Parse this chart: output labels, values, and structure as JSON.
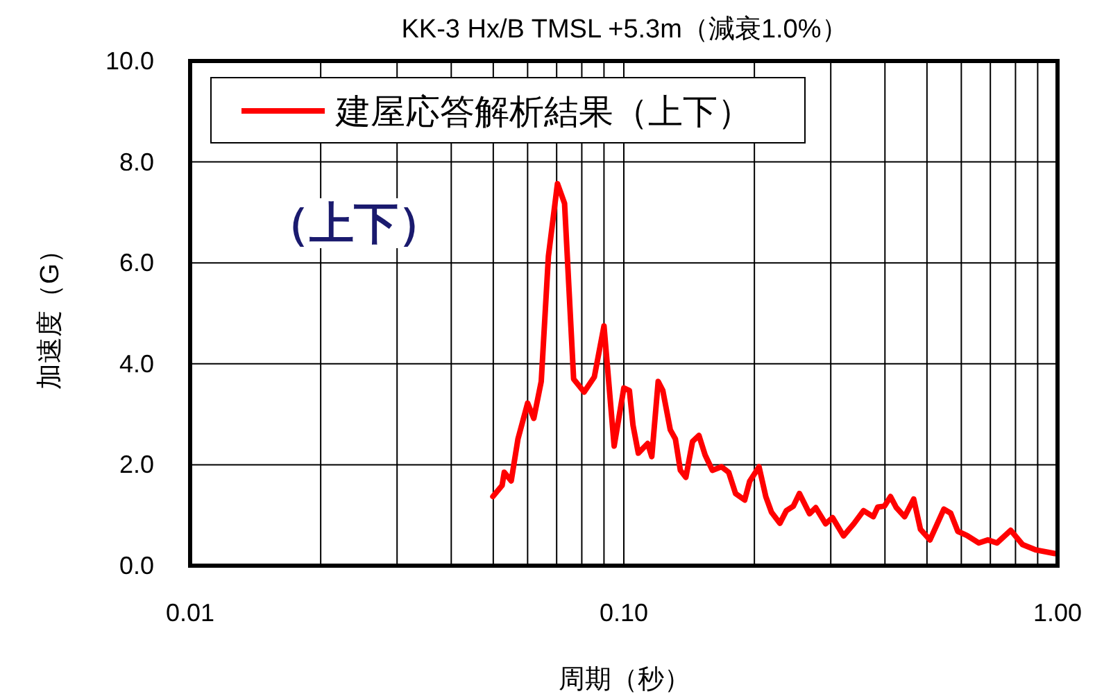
{
  "chart_data": {
    "type": "line",
    "title": "KK-3 Hx/B TMSL +5.3m（減衰1.0%）",
    "xlabel": "周期（秒）",
    "ylabel": "加速度（G）",
    "log": "x",
    "xlim": [
      0.01,
      1
    ],
    "xticks": [
      {
        "value": 0.01,
        "label": "0.01"
      },
      {
        "value": 0.1,
        "label": "0.10"
      },
      {
        "value": 1,
        "label": "1.00"
      }
    ],
    "ylim": [
      0,
      10
    ],
    "yticks": [
      {
        "value": 0,
        "label": "0.0"
      },
      {
        "value": 2,
        "label": "2.0"
      },
      {
        "value": 4,
        "label": "4.0"
      },
      {
        "value": 6,
        "label": "6.0"
      },
      {
        "value": 8,
        "label": "8.0"
      },
      {
        "value": 10,
        "label": "10.0"
      }
    ],
    "grid": true,
    "legend": "top left",
    "marker": "none",
    "line_style": "solid",
    "annotations": [
      "（上下）"
    ],
    "series": [
      {
        "name": "建屋応答解析結果（上下）",
        "color": "#ff0000",
        "x": [
          0.0499,
          0.0524,
          0.053,
          0.055,
          0.057,
          0.06,
          0.062,
          0.0645,
          0.067,
          0.0703,
          0.073,
          0.0766,
          0.081,
          0.0855,
          0.09,
          0.095,
          0.1,
          0.103,
          0.105,
          0.108,
          0.1135,
          0.116,
          0.12,
          0.123,
          0.128,
          0.1315,
          0.135,
          0.139,
          0.144,
          0.149,
          0.154,
          0.16,
          0.168,
          0.1745,
          0.181,
          0.19,
          0.195,
          0.205,
          0.2125,
          0.219,
          0.229,
          0.237,
          0.246,
          0.254,
          0.268,
          0.277,
          0.292,
          0.303,
          0.321,
          0.339,
          0.357,
          0.376,
          0.385,
          0.399,
          0.412,
          0.425,
          0.444,
          0.466,
          0.483,
          0.508,
          0.547,
          0.567,
          0.589,
          0.618,
          0.658,
          0.691,
          0.725,
          0.78,
          0.83,
          0.893,
          0.986
        ],
        "values": [
          1.37,
          1.59,
          1.85,
          1.68,
          2.51,
          3.22,
          2.92,
          3.65,
          6.13,
          7.57,
          7.18,
          3.7,
          3.44,
          3.74,
          4.75,
          2.37,
          3.52,
          3.47,
          2.78,
          2.23,
          2.42,
          2.16,
          3.65,
          3.47,
          2.69,
          2.51,
          1.89,
          1.75,
          2.46,
          2.58,
          2.19,
          1.89,
          1.96,
          1.85,
          1.43,
          1.3,
          1.67,
          1.96,
          1.37,
          1.06,
          0.84,
          1.09,
          1.18,
          1.43,
          1.03,
          1.15,
          0.83,
          0.95,
          0.59,
          0.83,
          1.09,
          0.97,
          1.16,
          1.18,
          1.37,
          1.15,
          0.97,
          1.32,
          0.72,
          0.51,
          1.12,
          1.04,
          0.68,
          0.6,
          0.45,
          0.51,
          0.45,
          0.7,
          0.42,
          0.31,
          0.24
        ]
      }
    ]
  }
}
